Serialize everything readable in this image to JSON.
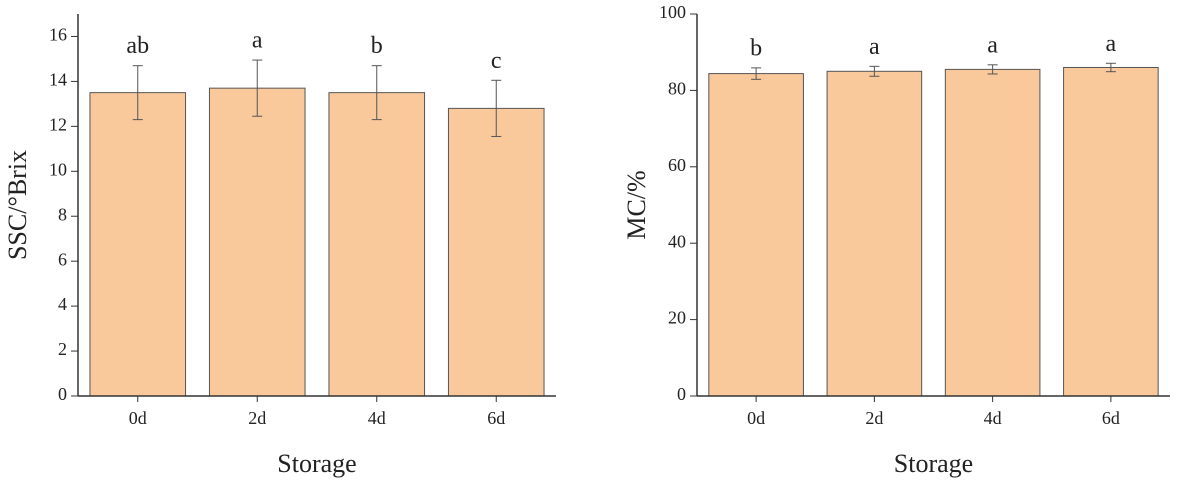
{
  "chart_data": [
    {
      "type": "bar",
      "x_label": "Storage",
      "y_label": "SSC/°Brix",
      "categories": [
        "0d",
        "2d",
        "4d",
        "6d"
      ],
      "values": [
        13.5,
        13.7,
        13.5,
        12.8
      ],
      "errors": [
        1.2,
        1.25,
        1.2,
        1.25
      ],
      "annotations": [
        "ab",
        "a",
        "b",
        "c"
      ],
      "color": "#f9c89b",
      "ylim": [
        0,
        17
      ],
      "yticks": [
        0,
        2,
        4,
        6,
        8,
        10,
        12,
        14,
        16
      ]
    },
    {
      "type": "bar",
      "x_label": "Storage",
      "y_label": "MC/%",
      "categories": [
        "0d",
        "2d",
        "4d",
        "6d"
      ],
      "values": [
        84.4,
        85,
        85.5,
        86
      ],
      "errors": [
        1.5,
        1.3,
        1.2,
        1.1
      ],
      "annotations": [
        "b",
        "a",
        "a",
        "a"
      ],
      "color": "#f9c89b",
      "ylim": [
        0,
        100
      ],
      "yticks": [
        0,
        20,
        40,
        60,
        80,
        100
      ]
    }
  ]
}
